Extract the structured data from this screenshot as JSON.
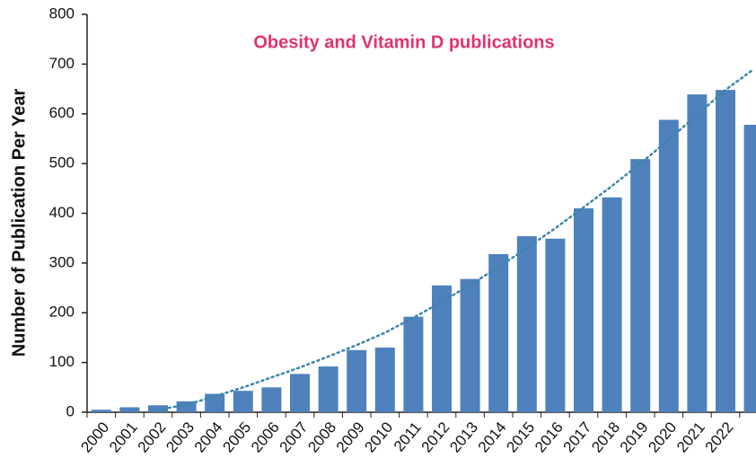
{
  "chart_data": {
    "type": "bar",
    "title": "Obesity and Vitamin D publications",
    "y_label": "Number of Publication Per Year",
    "categories": [
      "2000",
      "2001",
      "2002",
      "2003",
      "2004",
      "2005",
      "2006",
      "2007",
      "2008",
      "2009",
      "2010",
      "2011",
      "2012",
      "2013",
      "2014",
      "2015",
      "2016",
      "2017",
      "2018",
      "2019",
      "2020",
      "2021",
      "2022",
      null
    ],
    "values": [
      5,
      10,
      14,
      22,
      37,
      43,
      50,
      77,
      92,
      125,
      130,
      192,
      255,
      268,
      318,
      354,
      349,
      410,
      432,
      509,
      588,
      639,
      648,
      578
    ],
    "color": "#4f81bd",
    "trendline": {
      "values": [
        null,
        null,
        5,
        15,
        32,
        50,
        70,
        90,
        112,
        135,
        160,
        190,
        222,
        256,
        292,
        330,
        370,
        412,
        455,
        500,
        548,
        598,
        648,
        690
      ],
      "color": "#3a86a8"
    },
    "ylim": [
      0,
      800
    ],
    "yticks": [
      0,
      100,
      200,
      300,
      400,
      500,
      600,
      700,
      800
    ],
    "grid": false
  }
}
